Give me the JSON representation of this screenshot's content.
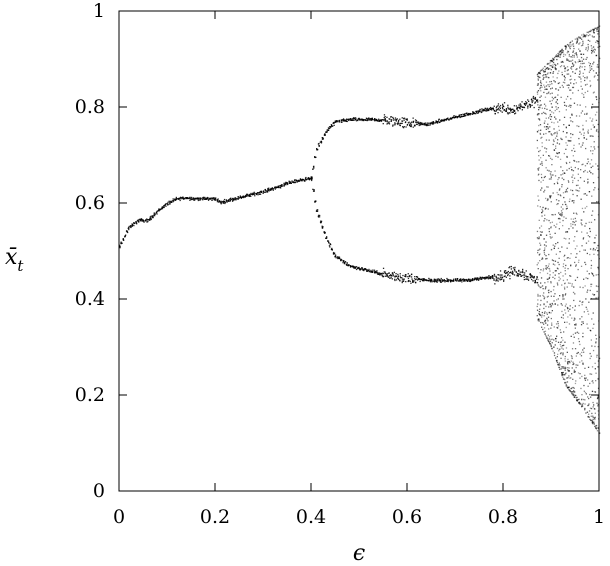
{
  "chart_data": {
    "type": "scatter",
    "title": "",
    "xlabel": "ϵ",
    "ylabel": {
      "base": "x̄",
      "sub": "t"
    },
    "xlim": [
      0,
      1
    ],
    "ylim": [
      0,
      1
    ],
    "x_ticks": [
      0,
      0.2,
      0.4,
      0.6,
      0.8,
      1
    ],
    "x_tick_labels": [
      "0",
      "0.2",
      "0.4",
      "0.6",
      "0.8",
      "1"
    ],
    "y_ticks": [
      0,
      0.2,
      0.4,
      0.6,
      0.8,
      1
    ],
    "y_tick_labels": [
      "0",
      "0.2",
      "0.4",
      "0.6",
      "0.8",
      "1"
    ],
    "grid": false,
    "legend": "none",
    "point_color": "#000000",
    "series": [
      {
        "x": [
          0.0,
          0.02,
          0.04,
          0.06,
          0.08,
          0.1,
          0.12,
          0.14,
          0.16,
          0.18,
          0.2,
          0.21,
          0.23,
          0.26,
          0.3,
          0.33,
          0.36,
          0.38,
          0.4
        ],
        "values": [
          0.51,
          0.55,
          0.565,
          0.565,
          0.585,
          0.6,
          0.61,
          0.612,
          0.61,
          0.61,
          0.61,
          0.602,
          0.608,
          0.615,
          0.625,
          0.635,
          0.645,
          0.65,
          0.652
        ]
      },
      {
        "x": [
          0.4,
          0.41,
          0.43,
          0.45,
          0.48,
          0.52,
          0.56,
          0.6,
          0.64,
          0.68,
          0.72,
          0.76,
          0.8,
          0.82,
          0.84,
          0.87
        ],
        "values": [
          0.652,
          0.71,
          0.75,
          0.77,
          0.775,
          0.775,
          0.773,
          0.768,
          0.765,
          0.775,
          0.785,
          0.795,
          0.8,
          0.795,
          0.805,
          0.815
        ]
      },
      {
        "x": [
          0.4,
          0.41,
          0.43,
          0.45,
          0.48,
          0.52,
          0.56,
          0.6,
          0.64,
          0.68,
          0.72,
          0.76,
          0.8,
          0.82,
          0.84,
          0.87
        ],
        "values": [
          0.652,
          0.59,
          0.53,
          0.49,
          0.47,
          0.46,
          0.45,
          0.445,
          0.44,
          0.44,
          0.44,
          0.445,
          0.45,
          0.46,
          0.455,
          0.44
        ]
      },
      {
        "x": [
          0.87,
          0.9,
          0.93,
          0.96,
          1.0
        ],
        "y_min": [
          0.36,
          0.3,
          0.22,
          0.18,
          0.12
        ],
        "y_max": [
          0.87,
          0.9,
          0.93,
          0.95,
          0.97
        ]
      }
    ]
  }
}
